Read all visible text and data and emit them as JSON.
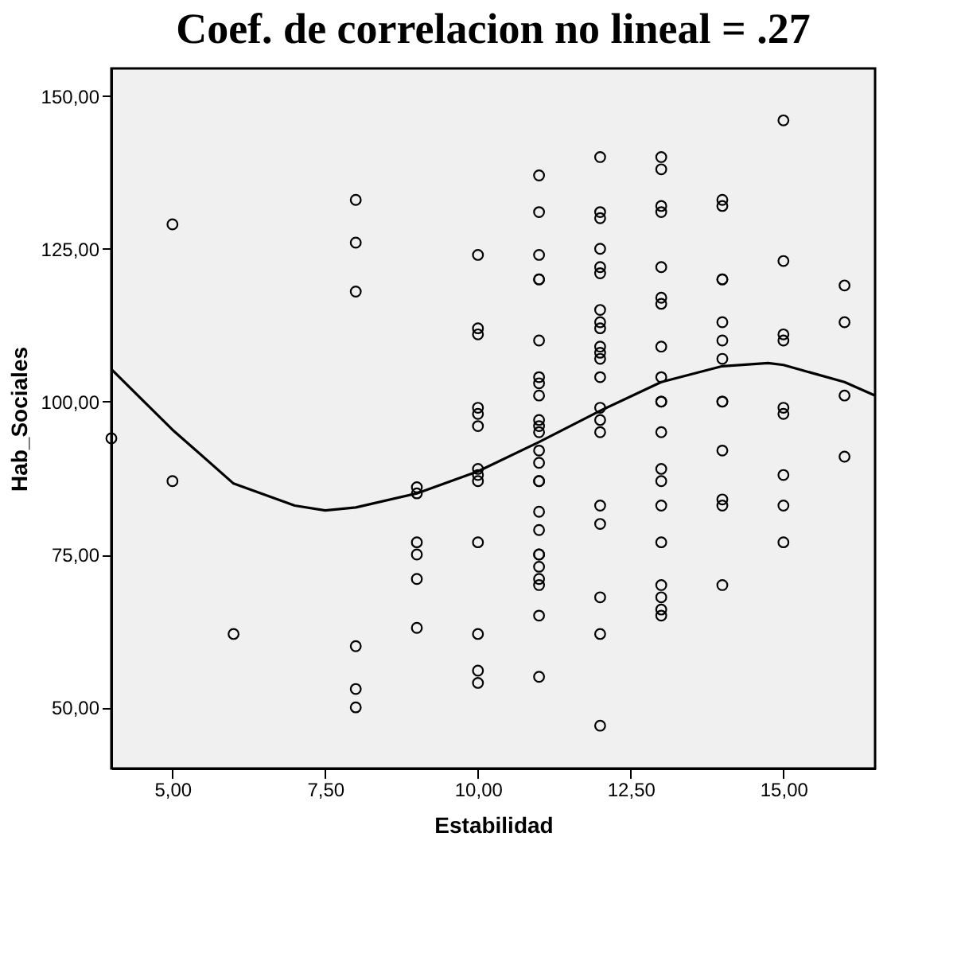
{
  "chart_data": {
    "type": "scatter",
    "title": "Coef. de correlacion no lineal = .27",
    "xlabel": "Estabilidad",
    "ylabel": "Hab_Sociales",
    "xlim": [
      4,
      16.5
    ],
    "ylim": [
      40,
      154.5
    ],
    "xticks": [
      {
        "value": 5,
        "label": "5,00"
      },
      {
        "value": 7.5,
        "label": "7,50"
      },
      {
        "value": 10,
        "label": "10,00"
      },
      {
        "value": 12.5,
        "label": "12,50"
      },
      {
        "value": 15,
        "label": "15,00"
      }
    ],
    "yticks": [
      {
        "value": 50,
        "label": "50,00"
      },
      {
        "value": 75,
        "label": "75,00"
      },
      {
        "value": 100,
        "label": "100,00"
      },
      {
        "value": 125,
        "label": "125,00"
      },
      {
        "value": 150,
        "label": "150,00"
      }
    ],
    "grid": false,
    "legend": false,
    "marker": "circle",
    "series": [
      {
        "color": "#000000",
        "x": [
          4,
          5,
          5,
          6,
          8,
          8,
          8,
          8,
          8,
          8,
          9,
          9,
          9,
          9,
          9,
          9,
          10,
          10,
          10,
          10,
          10,
          10,
          10,
          10,
          10,
          10,
          10,
          10,
          10,
          11,
          11,
          11,
          11,
          11,
          11,
          11,
          11,
          11,
          11,
          11,
          11,
          11,
          11,
          11,
          11,
          11,
          11,
          11,
          11,
          11,
          11,
          11,
          11,
          11,
          12,
          12,
          12,
          12,
          12,
          12,
          12,
          12,
          12,
          12,
          12,
          12,
          12,
          12,
          12,
          12,
          12,
          12,
          12,
          12,
          12,
          13,
          13,
          13,
          13,
          13,
          13,
          13,
          13,
          13,
          13,
          13,
          13,
          13,
          13,
          13,
          13,
          13,
          13,
          13,
          13,
          14,
          14,
          14,
          14,
          14,
          14,
          14,
          14,
          14,
          14,
          14,
          14,
          14,
          15,
          15,
          15,
          15,
          15,
          15,
          15,
          15,
          15,
          16,
          16,
          16,
          16
        ],
        "values": [
          94,
          129,
          87,
          62,
          133,
          126,
          118,
          60,
          53,
          50,
          86,
          85,
          77,
          75,
          71,
          63,
          124,
          112,
          111,
          99,
          98,
          96,
          89,
          88,
          87,
          77,
          62,
          56,
          54,
          137,
          131,
          124,
          120,
          120,
          110,
          104,
          103,
          101,
          97,
          96,
          95,
          92,
          90,
          87,
          87,
          82,
          79,
          75,
          75,
          73,
          71,
          70,
          65,
          55,
          131,
          130,
          125,
          122,
          121,
          115,
          113,
          112,
          109,
          108,
          107,
          104,
          99,
          97,
          95,
          83,
          80,
          68,
          62,
          47,
          140,
          138,
          132,
          131,
          122,
          117,
          116,
          109,
          104,
          100,
          100,
          95,
          89,
          87,
          83,
          77,
          70,
          68,
          66,
          65,
          140,
          133,
          132,
          120,
          120,
          113,
          110,
          107,
          100,
          100,
          92,
          84,
          83,
          70,
          146,
          123,
          111,
          110,
          99,
          98,
          88,
          83,
          77,
          119,
          113,
          101,
          91
        ]
      },
      {
        "type": "line",
        "color": "#000000",
        "line_style": "solid",
        "marker": "none",
        "x": [
          4,
          5,
          6,
          7,
          7.5,
          8,
          9,
          10,
          11,
          12,
          13,
          14,
          14.75,
          15,
          16,
          16.5
        ],
        "values": [
          105.3,
          95.4,
          86.6,
          83,
          82.2,
          82.7,
          85,
          88.6,
          93.4,
          98.5,
          103.2,
          105.8,
          106.3,
          106,
          103.2,
          101
        ]
      }
    ]
  }
}
